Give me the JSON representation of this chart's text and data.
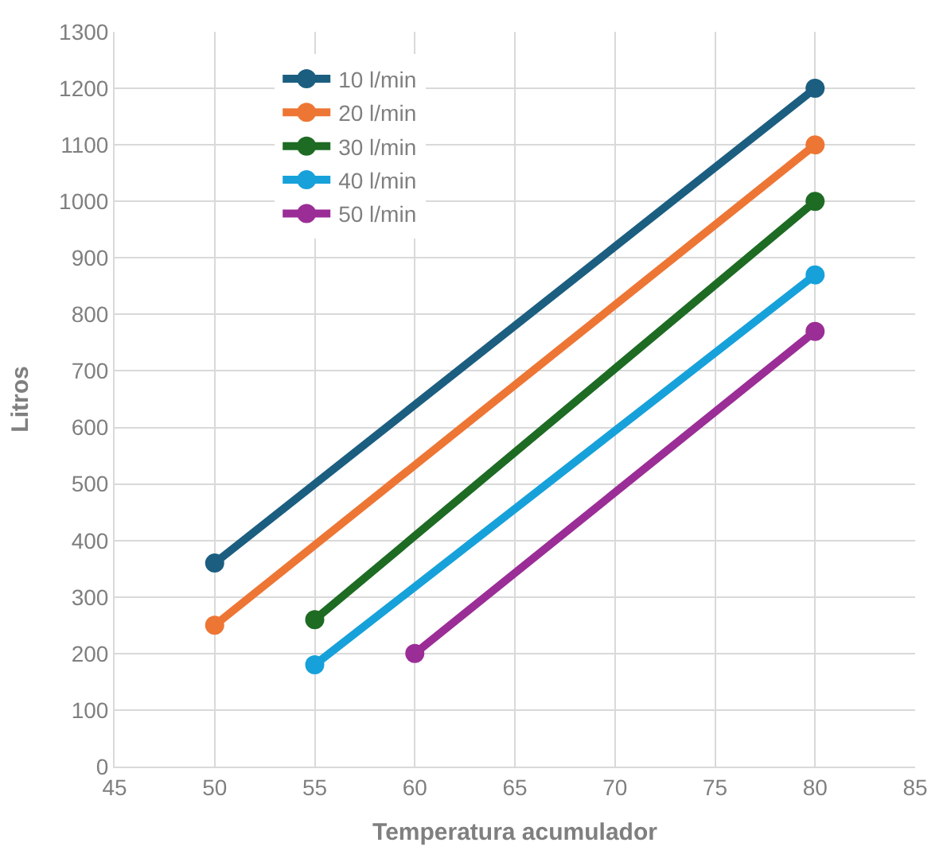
{
  "chart_data": {
    "type": "line",
    "xlabel": "Temperatura acumulador",
    "ylabel": "Litros",
    "xlim": [
      45,
      85
    ],
    "xticks": [
      45,
      50,
      55,
      60,
      65,
      70,
      75,
      80,
      85
    ],
    "ylim": [
      0,
      1300
    ],
    "yticks": [
      0,
      100,
      200,
      300,
      400,
      500,
      600,
      700,
      800,
      900,
      1000,
      1100,
      1200,
      1300
    ],
    "grid": true,
    "legend": "top left",
    "marker": "circle",
    "line_style": "solid",
    "series": [
      {
        "name": "10 l/min",
        "color": "#1b5e80",
        "x": [
          50,
          80
        ],
        "values": [
          360,
          1200
        ]
      },
      {
        "name": "20 l/min",
        "color": "#ed7635",
        "x": [
          50,
          80
        ],
        "values": [
          250,
          1100
        ]
      },
      {
        "name": "30 l/min",
        "color": "#1e6b24",
        "x": [
          55,
          80
        ],
        "values": [
          260,
          1000
        ]
      },
      {
        "name": "40 l/min",
        "color": "#17a1da",
        "x": [
          55,
          80
        ],
        "values": [
          180,
          870
        ]
      },
      {
        "name": "50 l/min",
        "color": "#9b2d96",
        "x": [
          60,
          80
        ],
        "values": [
          200,
          770
        ]
      }
    ]
  }
}
